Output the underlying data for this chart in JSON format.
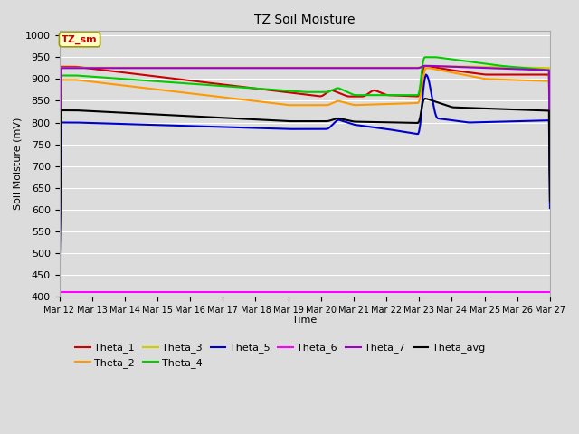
{
  "title": "TZ Soil Moisture",
  "xlabel": "Time",
  "ylabel": "Soil Moisture (mV)",
  "ylim": [
    400,
    1010
  ],
  "yticks": [
    400,
    450,
    500,
    550,
    600,
    650,
    700,
    750,
    800,
    850,
    900,
    950,
    1000
  ],
  "bg_color": "#dcdcdc",
  "plot_bg_color": "#dcdcdc",
  "label_box": "TZ_sm",
  "label_box_facecolor": "#ffffcc",
  "label_box_edgecolor": "#999900",
  "label_box_textcolor": "#cc0000",
  "colors": {
    "Theta_1": "#cc0000",
    "Theta_2": "#ff9900",
    "Theta_3": "#cccc00",
    "Theta_4": "#00cc00",
    "Theta_5": "#0000cc",
    "Theta_6": "#ff00ff",
    "Theta_7": "#9900cc",
    "Theta_avg": "#000000"
  },
  "xtick_labels": [
    "Mar 12",
    "Mar 13",
    "Mar 14",
    "Mar 15",
    "Mar 16",
    "Mar 17",
    "Mar 18",
    "Mar 19",
    "Mar 20",
    "Mar 21",
    "Mar 22",
    "Mar 23",
    "Mar 24",
    "Mar 25",
    "Mar 26",
    "Mar 27"
  ],
  "figsize": [
    6.4,
    4.8
  ],
  "dpi": 100
}
